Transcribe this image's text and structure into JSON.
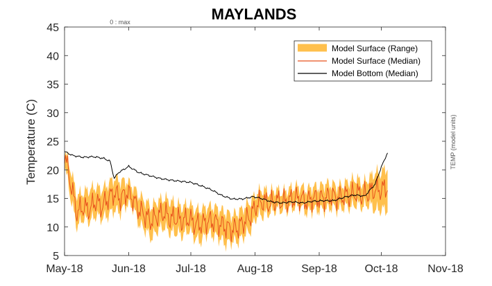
{
  "chart_data": {
    "type": "line",
    "title": "MAYLANDS",
    "ylabel": "Temperature (C)",
    "right_label": "TEMP (model units)",
    "top_note": "0 : max",
    "ylim": [
      5,
      45
    ],
    "yticks": [
      5,
      10,
      15,
      20,
      25,
      30,
      35,
      40,
      45
    ],
    "xlim": [
      "2018-05-01",
      "2018-11-01"
    ],
    "xticks": [
      {
        "date": "2018-05-01",
        "label": "May-18"
      },
      {
        "date": "2018-06-01",
        "label": "Jun-18"
      },
      {
        "date": "2018-07-01",
        "label": "Jul-18"
      },
      {
        "date": "2018-08-01",
        "label": "Aug-18"
      },
      {
        "date": "2018-09-01",
        "label": "Sep-18"
      },
      {
        "date": "2018-10-01",
        "label": "Oct-18"
      },
      {
        "date": "2018-11-01",
        "label": "Nov-18"
      }
    ],
    "grid": false,
    "legend_position": "top-right",
    "colors": {
      "range": "#FFC04D",
      "surface": "#E8501C",
      "bottom": "#000000"
    },
    "series": [
      {
        "name": "Model Surface (Range)",
        "kind": "band",
        "x": [
          "2018-05-01",
          "2018-05-04",
          "2018-05-07",
          "2018-05-10",
          "2018-05-13",
          "2018-05-16",
          "2018-05-19",
          "2018-05-22",
          "2018-05-25",
          "2018-05-28",
          "2018-05-31",
          "2018-06-03",
          "2018-06-06",
          "2018-06-09",
          "2018-06-12",
          "2018-06-15",
          "2018-06-18",
          "2018-06-21",
          "2018-06-24",
          "2018-06-27",
          "2018-06-30",
          "2018-07-03",
          "2018-07-06",
          "2018-07-09",
          "2018-07-12",
          "2018-07-15",
          "2018-07-18",
          "2018-07-21",
          "2018-07-24",
          "2018-07-27",
          "2018-07-30",
          "2018-08-02",
          "2018-08-05",
          "2018-08-08",
          "2018-08-11",
          "2018-08-14",
          "2018-08-17",
          "2018-08-20",
          "2018-08-23",
          "2018-08-26",
          "2018-08-29",
          "2018-09-01",
          "2018-09-04",
          "2018-09-07",
          "2018-09-10",
          "2018-09-13",
          "2018-09-16",
          "2018-09-19",
          "2018-09-22",
          "2018-09-25",
          "2018-09-28",
          "2018-10-01",
          "2018-10-04"
        ],
        "low": [
          21.0,
          15.0,
          10.0,
          11.5,
          11.0,
          12.0,
          11.5,
          12.0,
          13.0,
          12.5,
          14.0,
          13.5,
          10.5,
          9.5,
          8.0,
          9.5,
          10.0,
          9.0,
          9.0,
          8.5,
          9.5,
          8.0,
          7.5,
          9.0,
          8.5,
          8.0,
          7.0,
          7.5,
          7.5,
          8.5,
          9.5,
          12.0,
          12.0,
          12.5,
          13.0,
          13.0,
          13.0,
          13.5,
          13.5,
          12.5,
          13.0,
          13.0,
          13.0,
          13.5,
          13.0,
          13.5,
          13.5,
          14.0,
          13.5,
          14.0,
          13.0,
          13.0,
          13.0
        ],
        "high": [
          23.5,
          20.0,
          15.5,
          16.0,
          16.5,
          17.0,
          16.5,
          17.5,
          18.5,
          18.0,
          18.0,
          17.0,
          15.5,
          14.5,
          13.5,
          14.5,
          15.0,
          14.5,
          14.0,
          13.5,
          14.0,
          13.0,
          13.0,
          13.5,
          13.5,
          13.0,
          12.5,
          12.0,
          12.5,
          13.5,
          14.5,
          16.0,
          16.5,
          16.0,
          16.5,
          16.0,
          16.5,
          17.0,
          17.0,
          16.5,
          17.0,
          17.0,
          17.5,
          17.5,
          17.0,
          17.5,
          18.0,
          18.5,
          17.5,
          18.5,
          19.5,
          19.5,
          20.5
        ]
      },
      {
        "name": "Model Surface (Median)",
        "kind": "line",
        "x": [
          "2018-05-01",
          "2018-05-04",
          "2018-05-07",
          "2018-05-10",
          "2018-05-13",
          "2018-05-16",
          "2018-05-19",
          "2018-05-22",
          "2018-05-25",
          "2018-05-28",
          "2018-05-31",
          "2018-06-03",
          "2018-06-06",
          "2018-06-09",
          "2018-06-12",
          "2018-06-15",
          "2018-06-18",
          "2018-06-21",
          "2018-06-24",
          "2018-06-27",
          "2018-06-30",
          "2018-07-03",
          "2018-07-06",
          "2018-07-09",
          "2018-07-12",
          "2018-07-15",
          "2018-07-18",
          "2018-07-21",
          "2018-07-24",
          "2018-07-27",
          "2018-07-30",
          "2018-08-02",
          "2018-08-05",
          "2018-08-08",
          "2018-08-11",
          "2018-08-14",
          "2018-08-17",
          "2018-08-20",
          "2018-08-23",
          "2018-08-26",
          "2018-08-29",
          "2018-09-01",
          "2018-09-04",
          "2018-09-07",
          "2018-09-10",
          "2018-09-13",
          "2018-09-16",
          "2018-09-19",
          "2018-09-22",
          "2018-09-25",
          "2018-09-28",
          "2018-10-01",
          "2018-10-04"
        ],
        "y": [
          23.0,
          17.5,
          12.5,
          13.5,
          13.0,
          14.5,
          13.5,
          15.0,
          16.0,
          15.0,
          16.0,
          15.0,
          13.0,
          12.0,
          11.0,
          12.0,
          12.5,
          11.5,
          11.5,
          11.0,
          11.5,
          10.5,
          10.5,
          11.0,
          11.0,
          10.5,
          10.0,
          9.5,
          10.0,
          11.0,
          12.0,
          14.0,
          14.5,
          14.0,
          14.5,
          14.5,
          14.5,
          15.0,
          15.0,
          14.5,
          15.0,
          15.0,
          15.0,
          15.5,
          15.0,
          15.5,
          15.5,
          16.0,
          15.5,
          16.0,
          16.5,
          16.5,
          17.0
        ]
      },
      {
        "name": "Model Bottom (Median)",
        "kind": "line",
        "x": [
          "2018-05-01",
          "2018-05-05",
          "2018-05-10",
          "2018-05-15",
          "2018-05-20",
          "2018-05-23",
          "2018-05-25",
          "2018-05-27",
          "2018-06-01",
          "2018-06-06",
          "2018-06-11",
          "2018-06-16",
          "2018-06-21",
          "2018-06-26",
          "2018-07-01",
          "2018-07-06",
          "2018-07-11",
          "2018-07-16",
          "2018-07-21",
          "2018-07-26",
          "2018-07-31",
          "2018-08-04",
          "2018-08-09",
          "2018-08-14",
          "2018-08-19",
          "2018-08-24",
          "2018-08-29",
          "2018-09-03",
          "2018-09-08",
          "2018-09-13",
          "2018-09-18",
          "2018-09-23",
          "2018-09-28",
          "2018-10-01",
          "2018-10-04"
        ],
        "y": [
          23.2,
          22.5,
          22.2,
          22.3,
          22.0,
          21.5,
          18.5,
          19.5,
          20.6,
          19.5,
          19.0,
          18.5,
          18.2,
          18.0,
          17.8,
          17.2,
          16.5,
          15.5,
          14.9,
          14.9,
          15.3,
          15.0,
          14.4,
          14.2,
          14.4,
          14.2,
          14.5,
          14.6,
          14.6,
          15.2,
          15.6,
          15.4,
          17.5,
          20.5,
          23.0
        ]
      }
    ]
  }
}
